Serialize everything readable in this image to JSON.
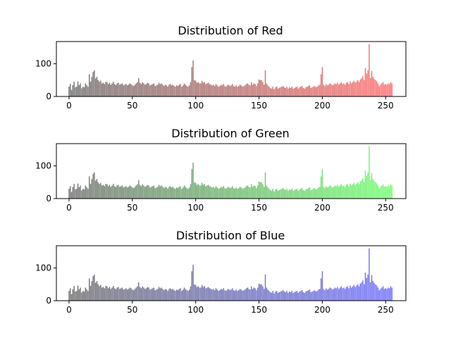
{
  "chart_data": [
    {
      "type": "bar",
      "title": "Distribution of Red",
      "color": "#ff0000",
      "bin_start": 0,
      "bin_step": 1,
      "xlim": [
        -10,
        266
      ],
      "ylim": [
        0,
        168
      ],
      "xticks": [
        0,
        50,
        100,
        150,
        200,
        250
      ],
      "yticks": [
        0,
        100
      ],
      "values": [
        30,
        38,
        20,
        35,
        45,
        28,
        30,
        46,
        35,
        40,
        25,
        30,
        28,
        40,
        35,
        30,
        68,
        45,
        60,
        75,
        80,
        55,
        60,
        50,
        45,
        48,
        40,
        42,
        38,
        45,
        44,
        38,
        42,
        36,
        40,
        45,
        38,
        35,
        40,
        42,
        36,
        38,
        40,
        34,
        36,
        38,
        34,
        36,
        40,
        38,
        34,
        32,
        36,
        40,
        44,
        56,
        42,
        38,
        44,
        40,
        36,
        38,
        42,
        40,
        34,
        36,
        38,
        40,
        32,
        34,
        36,
        42,
        38,
        40,
        36,
        32,
        36,
        34,
        30,
        36,
        38,
        34,
        36,
        32,
        30,
        34,
        32,
        36,
        38,
        30,
        34,
        40,
        36,
        32,
        30,
        34,
        44,
        90,
        110,
        50,
        48,
        42,
        44,
        40,
        40,
        48,
        42,
        45,
        38,
        40,
        42,
        38,
        36,
        34,
        36,
        32,
        38,
        34,
        30,
        32,
        36,
        34,
        38,
        32,
        30,
        34,
        36,
        32,
        34,
        38,
        32,
        30,
        34,
        30,
        32,
        36,
        34,
        30,
        32,
        34,
        38,
        40,
        36,
        34,
        44,
        36,
        40,
        38,
        32,
        40,
        52,
        50,
        50,
        44,
        36,
        80,
        40,
        34,
        30,
        26,
        24,
        30,
        22,
        28,
        30,
        24,
        26,
        28,
        30,
        32,
        28,
        26,
        30,
        24,
        28,
        26,
        30,
        24,
        26,
        28,
        30,
        24,
        28,
        30,
        32,
        26,
        24,
        28,
        30,
        32,
        34,
        26,
        28,
        30,
        32,
        28,
        30,
        34,
        36,
        68,
        90,
        36,
        32,
        38,
        34,
        36,
        40,
        38,
        34,
        36,
        40,
        38,
        42,
        36,
        40,
        44,
        38,
        40,
        36,
        42,
        44,
        38,
        46,
        40,
        44,
        48,
        42,
        46,
        50,
        44,
        52,
        56,
        62,
        50,
        86,
        70,
        80,
        160,
        56,
        78,
        60,
        54,
        50,
        46,
        40,
        32,
        36,
        40,
        44,
        36,
        38,
        36,
        40,
        38,
        44,
        40
      ]
    },
    {
      "type": "bar",
      "title": "Distribution of Green",
      "color": "#00ff00",
      "bin_start": 0,
      "bin_step": 1,
      "xlim": [
        -10,
        266
      ],
      "ylim": [
        0,
        168
      ],
      "xticks": [
        0,
        50,
        100,
        150,
        200,
        250
      ],
      "yticks": [
        0,
        100
      ],
      "values": [
        30,
        38,
        20,
        35,
        45,
        28,
        30,
        46,
        35,
        40,
        25,
        30,
        28,
        40,
        35,
        30,
        68,
        45,
        60,
        75,
        80,
        55,
        60,
        50,
        45,
        48,
        40,
        42,
        38,
        45,
        44,
        38,
        42,
        36,
        40,
        45,
        38,
        35,
        40,
        42,
        36,
        38,
        40,
        34,
        36,
        38,
        34,
        36,
        40,
        38,
        34,
        32,
        36,
        40,
        44,
        56,
        42,
        38,
        44,
        40,
        36,
        38,
        42,
        40,
        34,
        36,
        38,
        40,
        32,
        34,
        36,
        42,
        38,
        40,
        36,
        32,
        36,
        34,
        30,
        36,
        38,
        34,
        36,
        32,
        30,
        34,
        32,
        36,
        38,
        30,
        34,
        40,
        36,
        32,
        30,
        34,
        44,
        90,
        110,
        50,
        48,
        42,
        44,
        40,
        40,
        48,
        42,
        45,
        38,
        40,
        42,
        38,
        36,
        34,
        36,
        32,
        38,
        34,
        30,
        32,
        36,
        34,
        38,
        32,
        30,
        34,
        36,
        32,
        34,
        38,
        32,
        30,
        34,
        30,
        32,
        36,
        34,
        30,
        32,
        34,
        38,
        40,
        36,
        34,
        44,
        36,
        40,
        38,
        32,
        40,
        52,
        50,
        50,
        44,
        36,
        80,
        40,
        34,
        30,
        26,
        24,
        30,
        22,
        28,
        30,
        24,
        26,
        28,
        30,
        32,
        28,
        26,
        30,
        24,
        28,
        26,
        30,
        24,
        26,
        28,
        30,
        24,
        28,
        30,
        32,
        26,
        24,
        28,
        30,
        32,
        34,
        26,
        28,
        30,
        32,
        28,
        30,
        34,
        36,
        68,
        90,
        36,
        32,
        38,
        34,
        36,
        40,
        38,
        34,
        36,
        40,
        38,
        42,
        36,
        40,
        44,
        38,
        40,
        36,
        42,
        44,
        38,
        46,
        40,
        44,
        48,
        42,
        46,
        50,
        44,
        52,
        56,
        62,
        50,
        86,
        70,
        80,
        160,
        56,
        78,
        60,
        54,
        50,
        46,
        40,
        32,
        36,
        40,
        44,
        36,
        38,
        36,
        40,
        38,
        44,
        40
      ]
    },
    {
      "type": "bar",
      "title": "Distribution of Blue",
      "color": "#0000ff",
      "bin_start": 0,
      "bin_step": 1,
      "xlim": [
        -10,
        266
      ],
      "ylim": [
        0,
        168
      ],
      "xticks": [
        0,
        50,
        100,
        150,
        200,
        250
      ],
      "yticks": [
        0,
        100
      ],
      "values": [
        30,
        38,
        20,
        35,
        45,
        28,
        30,
        46,
        35,
        40,
        25,
        30,
        28,
        40,
        35,
        30,
        68,
        45,
        60,
        75,
        80,
        55,
        60,
        50,
        45,
        48,
        40,
        42,
        38,
        45,
        44,
        38,
        42,
        36,
        40,
        45,
        38,
        35,
        40,
        42,
        36,
        38,
        40,
        34,
        36,
        38,
        34,
        36,
        40,
        38,
        34,
        32,
        36,
        40,
        44,
        56,
        42,
        38,
        44,
        40,
        36,
        38,
        42,
        40,
        34,
        36,
        38,
        40,
        32,
        34,
        36,
        42,
        38,
        40,
        36,
        32,
        36,
        34,
        30,
        36,
        38,
        34,
        36,
        32,
        30,
        34,
        32,
        36,
        38,
        30,
        34,
        40,
        36,
        32,
        30,
        34,
        44,
        90,
        110,
        50,
        48,
        42,
        44,
        40,
        40,
        48,
        42,
        45,
        38,
        40,
        42,
        38,
        36,
        34,
        36,
        32,
        38,
        34,
        30,
        32,
        36,
        34,
        38,
        32,
        30,
        34,
        36,
        32,
        34,
        38,
        32,
        30,
        34,
        30,
        32,
        36,
        34,
        30,
        32,
        34,
        38,
        40,
        36,
        34,
        44,
        36,
        40,
        38,
        32,
        40,
        52,
        50,
        50,
        44,
        36,
        80,
        40,
        34,
        30,
        26,
        24,
        30,
        22,
        28,
        30,
        24,
        26,
        28,
        30,
        32,
        28,
        26,
        30,
        24,
        28,
        26,
        30,
        24,
        26,
        28,
        30,
        24,
        28,
        30,
        32,
        26,
        24,
        28,
        30,
        32,
        34,
        26,
        28,
        30,
        32,
        28,
        30,
        34,
        36,
        68,
        90,
        36,
        32,
        38,
        34,
        36,
        40,
        38,
        34,
        36,
        40,
        38,
        42,
        36,
        40,
        44,
        38,
        40,
        36,
        42,
        44,
        38,
        46,
        40,
        44,
        48,
        42,
        46,
        50,
        44,
        52,
        56,
        62,
        50,
        86,
        70,
        80,
        160,
        56,
        78,
        60,
        54,
        50,
        46,
        40,
        32,
        36,
        40,
        44,
        36,
        38,
        36,
        40,
        38,
        44,
        40
      ]
    }
  ]
}
